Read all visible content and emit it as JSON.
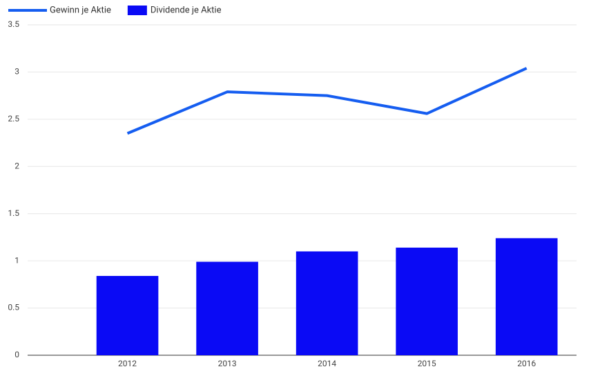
{
  "chart_data": {
    "type": "combo",
    "categories": [
      "2012",
      "2013",
      "2014",
      "2015",
      "2016"
    ],
    "series": [
      {
        "name": "Gewinn je Aktie",
        "type": "line",
        "color": "#155df0",
        "values": [
          2.35,
          2.79,
          2.75,
          2.56,
          3.04
        ]
      },
      {
        "name": "Dividende je Aktie",
        "type": "bar",
        "color": "#0a0af5",
        "values": [
          0.84,
          0.99,
          1.1,
          1.14,
          1.24
        ]
      }
    ],
    "ylim": [
      0,
      3.5
    ],
    "yticks": [
      0,
      0.5,
      1,
      1.5,
      2,
      2.5,
      3,
      3.5
    ],
    "grid": true
  }
}
